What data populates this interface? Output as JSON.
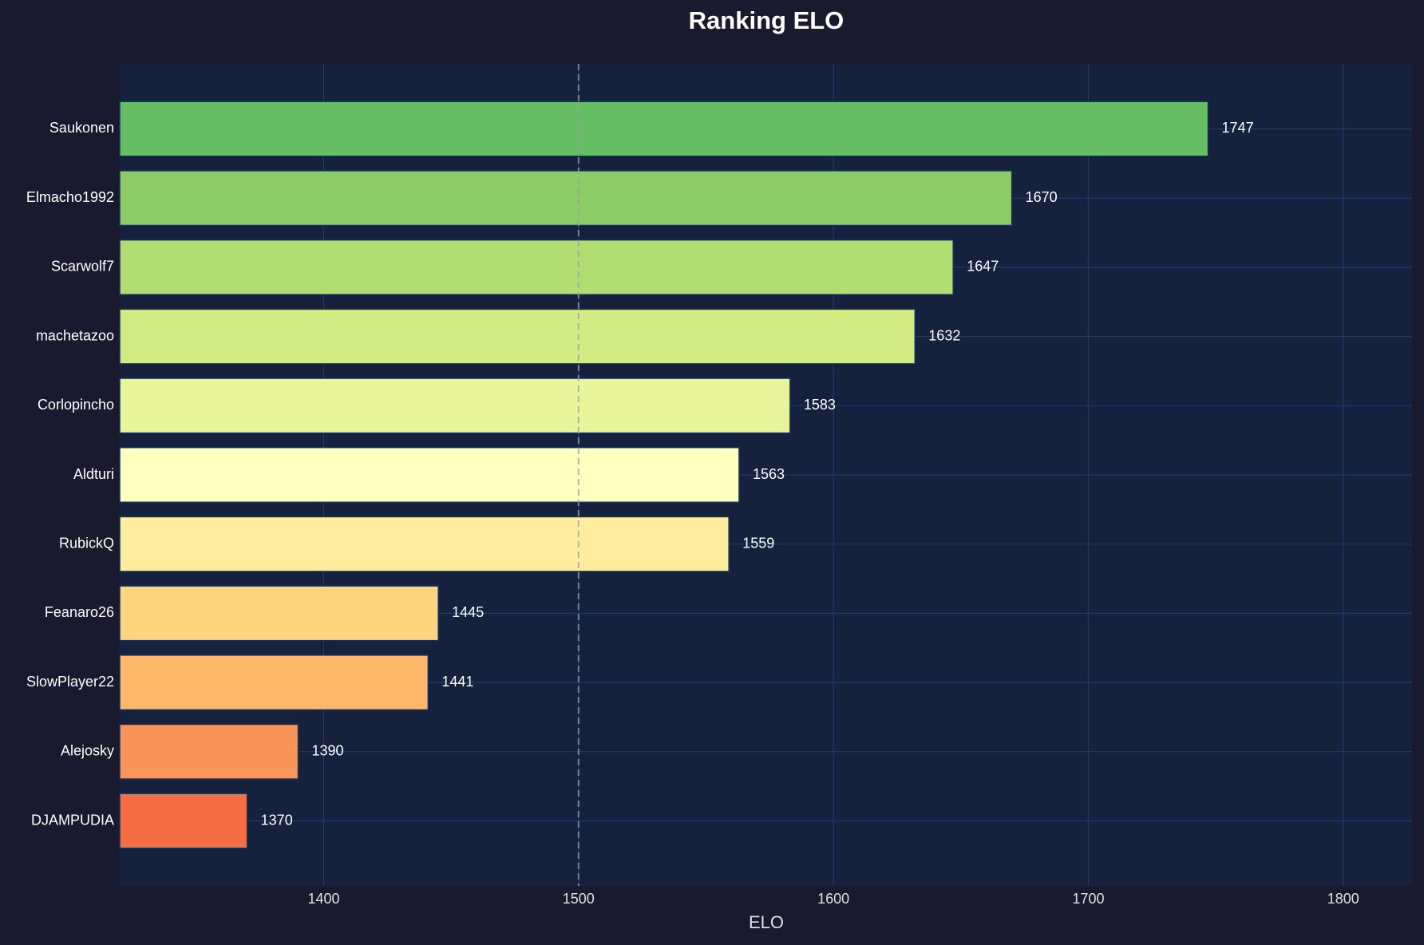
{
  "chart_data": {
    "type": "barh",
    "title": "Ranking ELO",
    "x_label": "ELO",
    "categories": [
      "Saukonen",
      "Elmacho1992",
      "Scarwolf7",
      "machetazoo",
      "Corlopincho",
      "Aldturi",
      "RubickQ",
      "Feanaro26",
      "SlowPlayer22",
      "Alejosky",
      "DJAMPUDIA"
    ],
    "values": [
      1747,
      1670,
      1647,
      1632,
      1583,
      1563,
      1559,
      1445,
      1441,
      1390,
      1370
    ],
    "colors": [
      "#66bd63",
      "#8ccb66",
      "#b2dd71",
      "#d1ec82",
      "#e8f59b",
      "#ffffbf",
      "#feec9f",
      "#fed47f",
      "#fdb768",
      "#f99558",
      "#f46d43"
    ],
    "xlim": [
      1320,
      1827
    ],
    "xticks": [
      1400,
      1500,
      1600,
      1700,
      1800
    ],
    "grid": true,
    "reference_line": 1500
  }
}
